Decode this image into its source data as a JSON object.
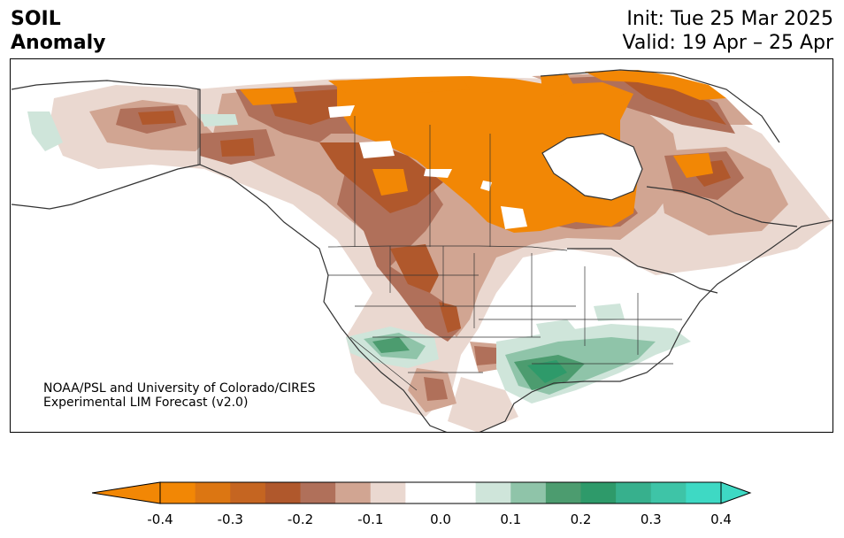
{
  "header": {
    "title_line1": "SOIL",
    "title_line2": "Anomaly",
    "init": "Init: Tue 25 Mar 2025",
    "valid": "Valid: 19 Apr – 25 Apr"
  },
  "credit": {
    "line1": "NOAA/PSL and University of Colorado/CIRES",
    "line2": "Experimental LIM Forecast (v2.0)"
  },
  "colorbar": {
    "ticks": [
      "-0.4",
      "-0.3",
      "-0.2",
      "-0.1",
      "0.0",
      "0.1",
      "0.2",
      "0.3",
      "0.4"
    ],
    "levels": [
      -0.4,
      -0.35,
      -0.3,
      -0.25,
      -0.2,
      -0.15,
      -0.1,
      -0.05,
      0.05,
      0.1,
      0.15,
      0.2,
      0.25,
      0.3,
      0.35,
      0.4
    ],
    "colors": [
      "#f28705",
      "#dc7612",
      "#c56521",
      "#b0582c",
      "#b0705a",
      "#d1a592",
      "#ead8d0",
      "#ffffff",
      "#cfe5da",
      "#8fc4a9",
      "#4c9c6f",
      "#2e9a6a",
      "#37b08d",
      "#3ec4a7",
      "#3ed9c4"
    ],
    "extend_low_color": "#f28705",
    "extend_high_color": "#3ed9c4"
  }
}
